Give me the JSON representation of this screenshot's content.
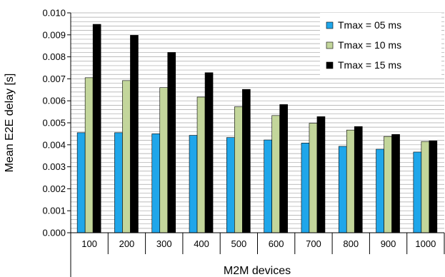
{
  "chart_data": {
    "type": "bar",
    "categories": [
      "100",
      "200",
      "300",
      "400",
      "500",
      "600",
      "700",
      "800",
      "900",
      "1000"
    ],
    "series": [
      {
        "name": "Tmax = 05 ms",
        "color": "#1fa6ea",
        "values": [
          0.00455,
          0.00455,
          0.0045,
          0.00443,
          0.00433,
          0.00422,
          0.00408,
          0.00393,
          0.0038,
          0.00367
        ]
      },
      {
        "name": "Tmax = 10 ms",
        "color": "#c3d69b",
        "values": [
          0.00705,
          0.00692,
          0.0066,
          0.00617,
          0.00573,
          0.00533,
          0.00498,
          0.00467,
          0.00438,
          0.00415
        ]
      },
      {
        "name": "Tmax = 15 ms",
        "color": "#000000",
        "values": [
          0.00948,
          0.00898,
          0.0082,
          0.00728,
          0.00652,
          0.00583,
          0.00528,
          0.00483,
          0.00447,
          0.00418
        ]
      }
    ],
    "title": "",
    "xlabel": "M2M devices",
    "ylabel": "Mean E2E delay [s]",
    "ylim": [
      0,
      0.01
    ],
    "yticks": [
      "0.000",
      "0.001",
      "0.002",
      "0.003",
      "0.004",
      "0.005",
      "0.006",
      "0.007",
      "0.008",
      "0.009",
      "0.010"
    ],
    "grid": "horizontal lines at every 0.0002",
    "legend_position": "top-right"
  }
}
